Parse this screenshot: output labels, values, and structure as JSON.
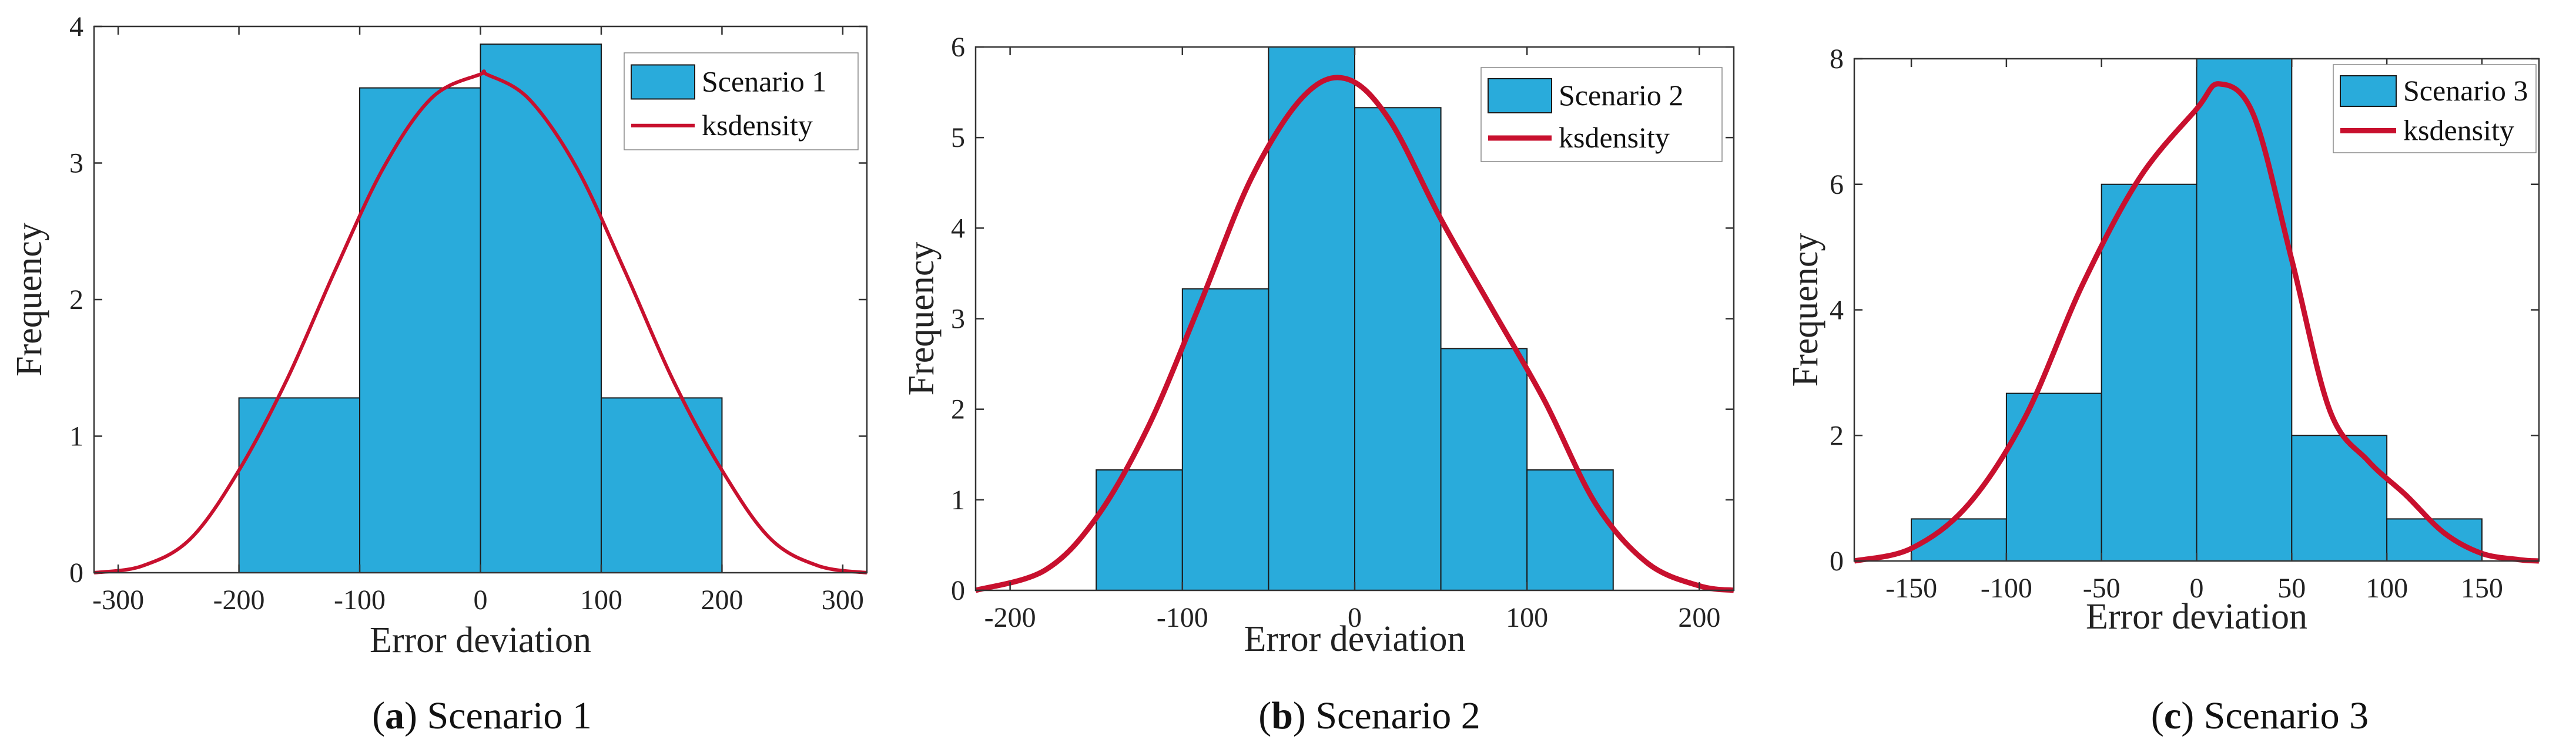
{
  "chart_data": [
    {
      "type": "bar",
      "caption": {
        "letter": "a",
        "text": "Scenario 1"
      },
      "bin_edges": [
        -200,
        -100,
        0,
        100,
        200
      ],
      "values": [
        1.28,
        3.55,
        3.87,
        1.28
      ],
      "xlabel": "Error deviation",
      "ylabel": "Frequency",
      "xlim": [
        -320,
        320
      ],
      "ylim": [
        0,
        4
      ],
      "xticks": [
        -300,
        -200,
        -100,
        0,
        100,
        200,
        300
      ],
      "yticks": [
        0,
        1,
        2,
        3,
        4
      ],
      "legend": {
        "position": "top-right",
        "entries": [
          "Scenario 1",
          "ksdensity"
        ]
      },
      "density": {
        "x": [
          -320,
          -280,
          -240,
          -200,
          -160,
          -120,
          -80,
          -40,
          0,
          5,
          40,
          80,
          120,
          160,
          200,
          240,
          280,
          320
        ],
        "y": [
          0.0,
          0.05,
          0.25,
          0.75,
          1.42,
          2.22,
          2.97,
          3.48,
          3.65,
          3.65,
          3.47,
          2.96,
          2.2,
          1.4,
          0.75,
          0.25,
          0.05,
          0.0
        ]
      }
    },
    {
      "type": "bar",
      "caption": {
        "letter": "b",
        "text": "Scenario 2"
      },
      "bin_edges": [
        -150,
        -100,
        -50,
        0,
        50,
        100,
        150
      ],
      "values": [
        1.33,
        3.33,
        6.0,
        5.33,
        2.67,
        1.33
      ],
      "xlabel": "Error deviation",
      "ylabel": "Frequency",
      "xlim": [
        -220,
        220
      ],
      "ylim": [
        0,
        6
      ],
      "xticks": [
        -200,
        -100,
        0,
        100,
        200
      ],
      "yticks": [
        0,
        1,
        2,
        3,
        4,
        5,
        6
      ],
      "legend": {
        "position": "top-right",
        "entries": [
          "Scenario 2",
          "ksdensity"
        ]
      },
      "density": {
        "x": [
          -220,
          -180,
          -150,
          -120,
          -90,
          -60,
          -30,
          -5,
          20,
          50,
          80,
          110,
          140,
          170,
          200,
          220
        ],
        "y": [
          0.0,
          0.22,
          0.8,
          1.8,
          3.15,
          4.55,
          5.45,
          5.65,
          5.2,
          4.1,
          3.1,
          2.1,
          0.95,
          0.3,
          0.05,
          0.0
        ]
      }
    },
    {
      "type": "bar",
      "caption": {
        "letter": "c",
        "text": "Scenario 3"
      },
      "bin_edges": [
        -150,
        -100,
        -50,
        0,
        50,
        100,
        150
      ],
      "values": [
        0.67,
        2.67,
        6.0,
        8.0,
        2.0,
        0.67
      ],
      "xlabel": "Error deviation",
      "ylabel": "Frequency",
      "xlim": [
        -180,
        180
      ],
      "ylim": [
        0,
        8
      ],
      "xticks": [
        -150,
        -100,
        -50,
        0,
        50,
        100,
        150
      ],
      "yticks": [
        0,
        2,
        4,
        6,
        8
      ],
      "legend": {
        "position": "top-right",
        "entries": [
          "Scenario 3",
          "ksdensity"
        ]
      },
      "density": {
        "x": [
          -180,
          -150,
          -120,
          -90,
          -60,
          -30,
          0,
          12,
          30,
          50,
          70,
          90,
          110,
          130,
          150,
          170,
          180
        ],
        "y": [
          0.0,
          0.2,
          0.9,
          2.3,
          4.4,
          6.1,
          7.2,
          7.6,
          7.1,
          4.8,
          2.4,
          1.6,
          1.05,
          0.45,
          0.12,
          0.02,
          0.0
        ]
      }
    }
  ],
  "colors": {
    "bar_fill": "#29abdb",
    "bar_stroke": "#1a1a1a",
    "density_line": "#c8102e",
    "axis": "#333333"
  }
}
